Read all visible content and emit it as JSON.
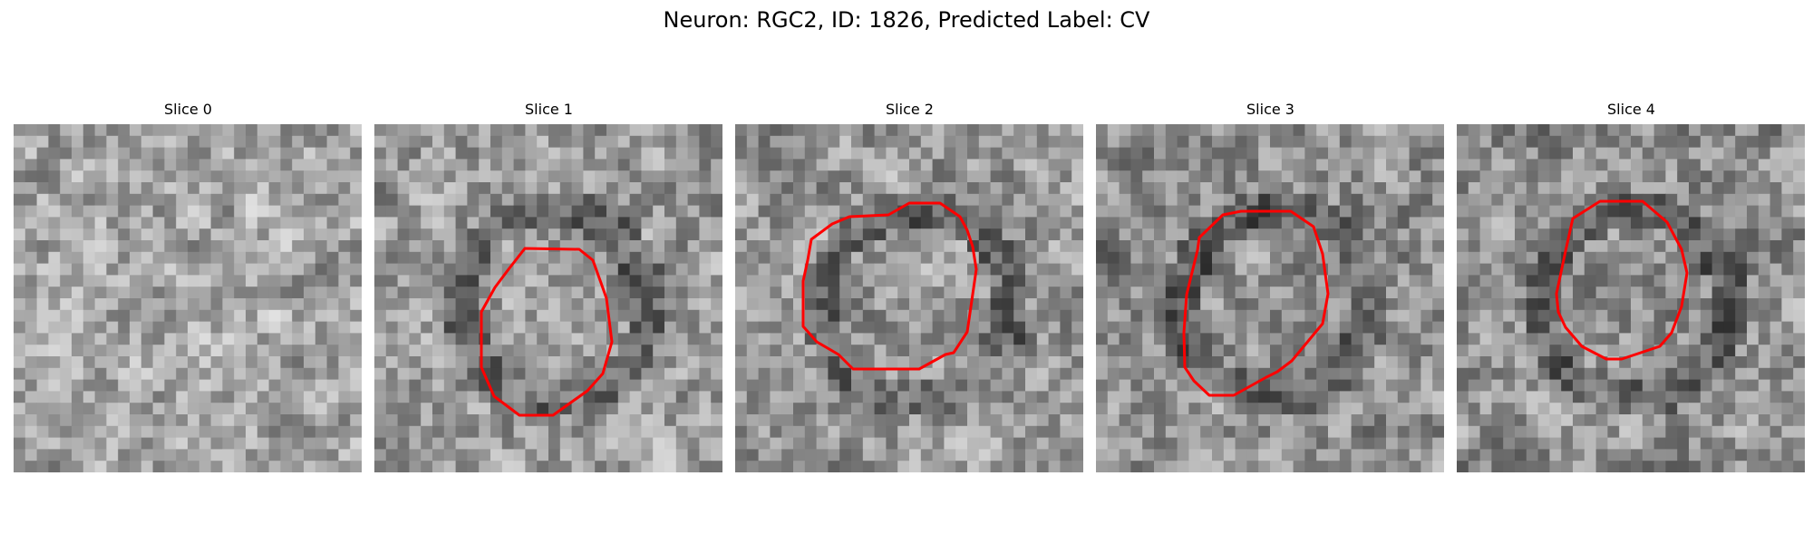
{
  "figure": {
    "title": "Neuron: RGC2, ID: 1826, Predicted Label: CV"
  },
  "panels": [
    {
      "title": "Slice 0",
      "seed": 11,
      "bias": 0.05,
      "contour": false
    },
    {
      "title": "Slice 1",
      "seed": 23,
      "bias": 0.02,
      "contour": true
    },
    {
      "title": "Slice 2",
      "seed": 37,
      "bias": 0.0,
      "contour": true
    },
    {
      "title": "Slice 3",
      "seed": 51,
      "bias": -0.03,
      "contour": true
    },
    {
      "title": "Slice 4",
      "seed": 67,
      "bias": -0.02,
      "contour": true
    }
  ],
  "colors": {
    "contour": "#ff0000",
    "background": "#ffffff"
  }
}
